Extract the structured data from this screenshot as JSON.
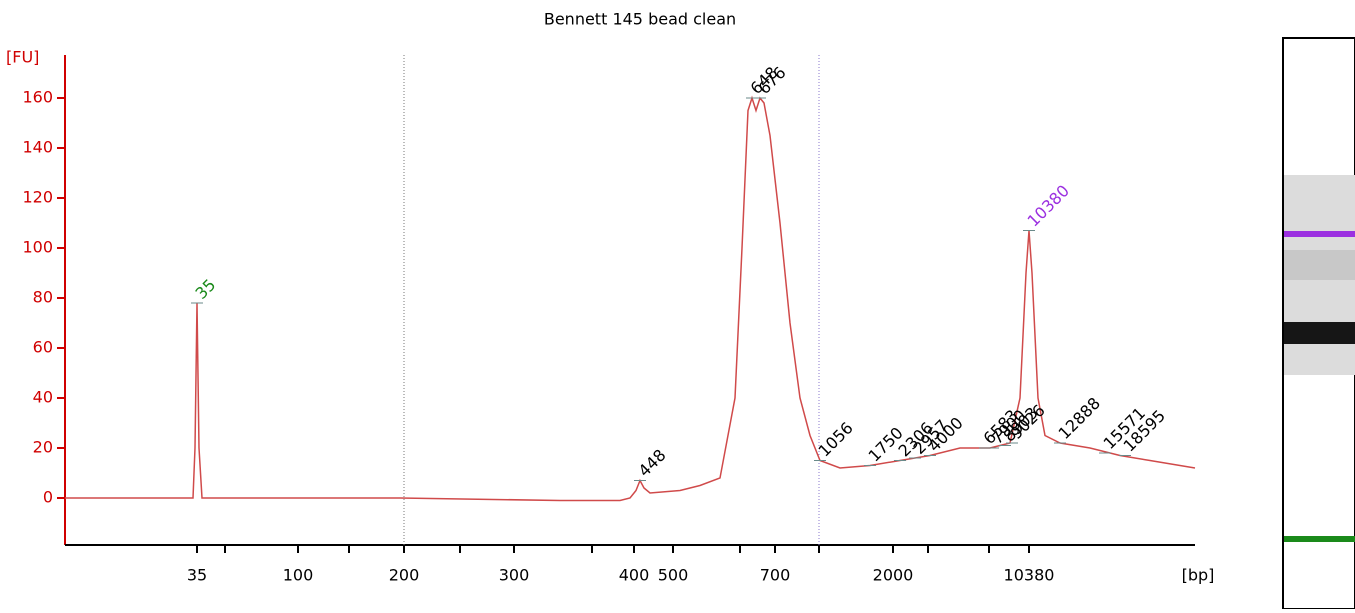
{
  "chart_data": {
    "type": "line",
    "title": "Bennett 145 bead clean",
    "y_label": "[FU]",
    "x_label": "[bp]",
    "ylim": [
      -18.8,
      177.2
    ],
    "yticks": [
      0,
      20,
      40,
      60,
      80,
      100,
      120,
      140,
      160
    ],
    "xlim": [
      0,
      1130
    ],
    "xticks": [
      {
        "value": 132,
        "label": "35"
      },
      {
        "value": 233,
        "label": "100"
      },
      {
        "value": 339,
        "label": "200"
      },
      {
        "value": 449,
        "label": "300"
      },
      {
        "value": 569,
        "label": "400"
      },
      {
        "value": 608,
        "label": "500"
      },
      {
        "value": 710,
        "label": "700"
      },
      {
        "value": 828,
        "label": "2000"
      },
      {
        "value": 964,
        "label": "10380"
      }
    ],
    "xminorticks": [
      160,
      284,
      395,
      527,
      675,
      754,
      863,
      924
    ],
    "series": [
      {
        "color": "#d04a4a",
        "x": [
          0,
          125,
          128,
          130,
          132,
          134,
          137,
          335,
          495,
          555,
          565,
          571,
          575,
          579,
          585,
          615,
          635,
          655,
          670,
          677,
          683,
          687,
          691,
          695,
          699,
          705,
          715,
          725,
          735,
          745,
          755,
          775,
          805,
          835,
          865,
          895,
          925,
          945,
          955,
          961,
          964,
          967,
          973,
          980,
          995,
          1025,
          1055,
          1085,
          1130
        ],
        "values": [
          0,
          0,
          0,
          20,
          78,
          20,
          0,
          0,
          -1,
          -1,
          0,
          3,
          7,
          4,
          2,
          3,
          5,
          8,
          40,
          100,
          155,
          160,
          155,
          160,
          158,
          145,
          110,
          70,
          40,
          25,
          15,
          12,
          13,
          15,
          17,
          20,
          20,
          22,
          40,
          90,
          107,
          90,
          40,
          25,
          22,
          20,
          17,
          15,
          12
        ]
      }
    ],
    "peaks": [
      {
        "label": "35",
        "x": 132,
        "value": 78,
        "color": "#1a8a1a"
      },
      {
        "label": "448",
        "x": 575,
        "value": 7,
        "color": "#000000"
      },
      {
        "label": "648",
        "x": 687,
        "value": 160,
        "color": "#000000"
      },
      {
        "label": "676",
        "x": 695,
        "value": 160,
        "color": "#000000"
      },
      {
        "label": "1056",
        "x": 755,
        "value": 15,
        "color": "#000000"
      },
      {
        "label": "1750",
        "x": 805,
        "value": 13,
        "color": "#000000"
      },
      {
        "label": "2306",
        "x": 835,
        "value": 15,
        "color": "#000000"
      },
      {
        "label": "2957",
        "x": 850,
        "value": 16,
        "color": "#000000"
      },
      {
        "label": "4000",
        "x": 865,
        "value": 17,
        "color": "#000000"
      },
      {
        "label": "6583",
        "x": 920,
        "value": 20,
        "color": "#000000"
      },
      {
        "label": "7900",
        "x": 928,
        "value": 20,
        "color": "#000000"
      },
      {
        "label": "8903",
        "x": 940,
        "value": 21,
        "color": "#000000"
      },
      {
        "label": "9026",
        "x": 947,
        "value": 22,
        "color": "#000000"
      },
      {
        "label": "10380",
        "x": 964,
        "value": 107,
        "color": "#9b30e0"
      },
      {
        "label": "12888",
        "x": 995,
        "value": 22,
        "color": "#000000"
      },
      {
        "label": "15571",
        "x": 1040,
        "value": 18,
        "color": "#000000"
      },
      {
        "label": "18595",
        "x": 1060,
        "value": 17,
        "color": "#000000"
      }
    ]
  }
}
